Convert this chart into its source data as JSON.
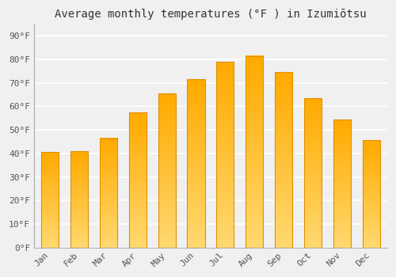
{
  "title": "Average monthly temperatures (°F ) in Izumiōtsu",
  "months": [
    "Jan",
    "Feb",
    "Mar",
    "Apr",
    "May",
    "Jun",
    "Jul",
    "Aug",
    "Sep",
    "Oct",
    "Nov",
    "Dec"
  ],
  "values": [
    40.5,
    41.0,
    46.5,
    57.5,
    65.5,
    71.5,
    79.0,
    81.5,
    74.5,
    63.5,
    54.5,
    45.5
  ],
  "bar_color_bottom": "#FFD970",
  "bar_color_top": "#FFAA00",
  "bar_border_color": "#E09000",
  "background_color": "#f0f0f0",
  "grid_color": "#ffffff",
  "ylim": [
    0,
    95
  ],
  "yticks": [
    0,
    10,
    20,
    30,
    40,
    50,
    60,
    70,
    80,
    90
  ],
  "ytick_labels": [
    "0°F",
    "10°F",
    "20°F",
    "30°F",
    "40°F",
    "50°F",
    "60°F",
    "70°F",
    "80°F",
    "90°F"
  ],
  "title_fontsize": 10,
  "tick_fontsize": 8,
  "font_family": "monospace",
  "bar_width": 0.6,
  "figsize": [
    5.0,
    3.5
  ],
  "dpi": 100
}
